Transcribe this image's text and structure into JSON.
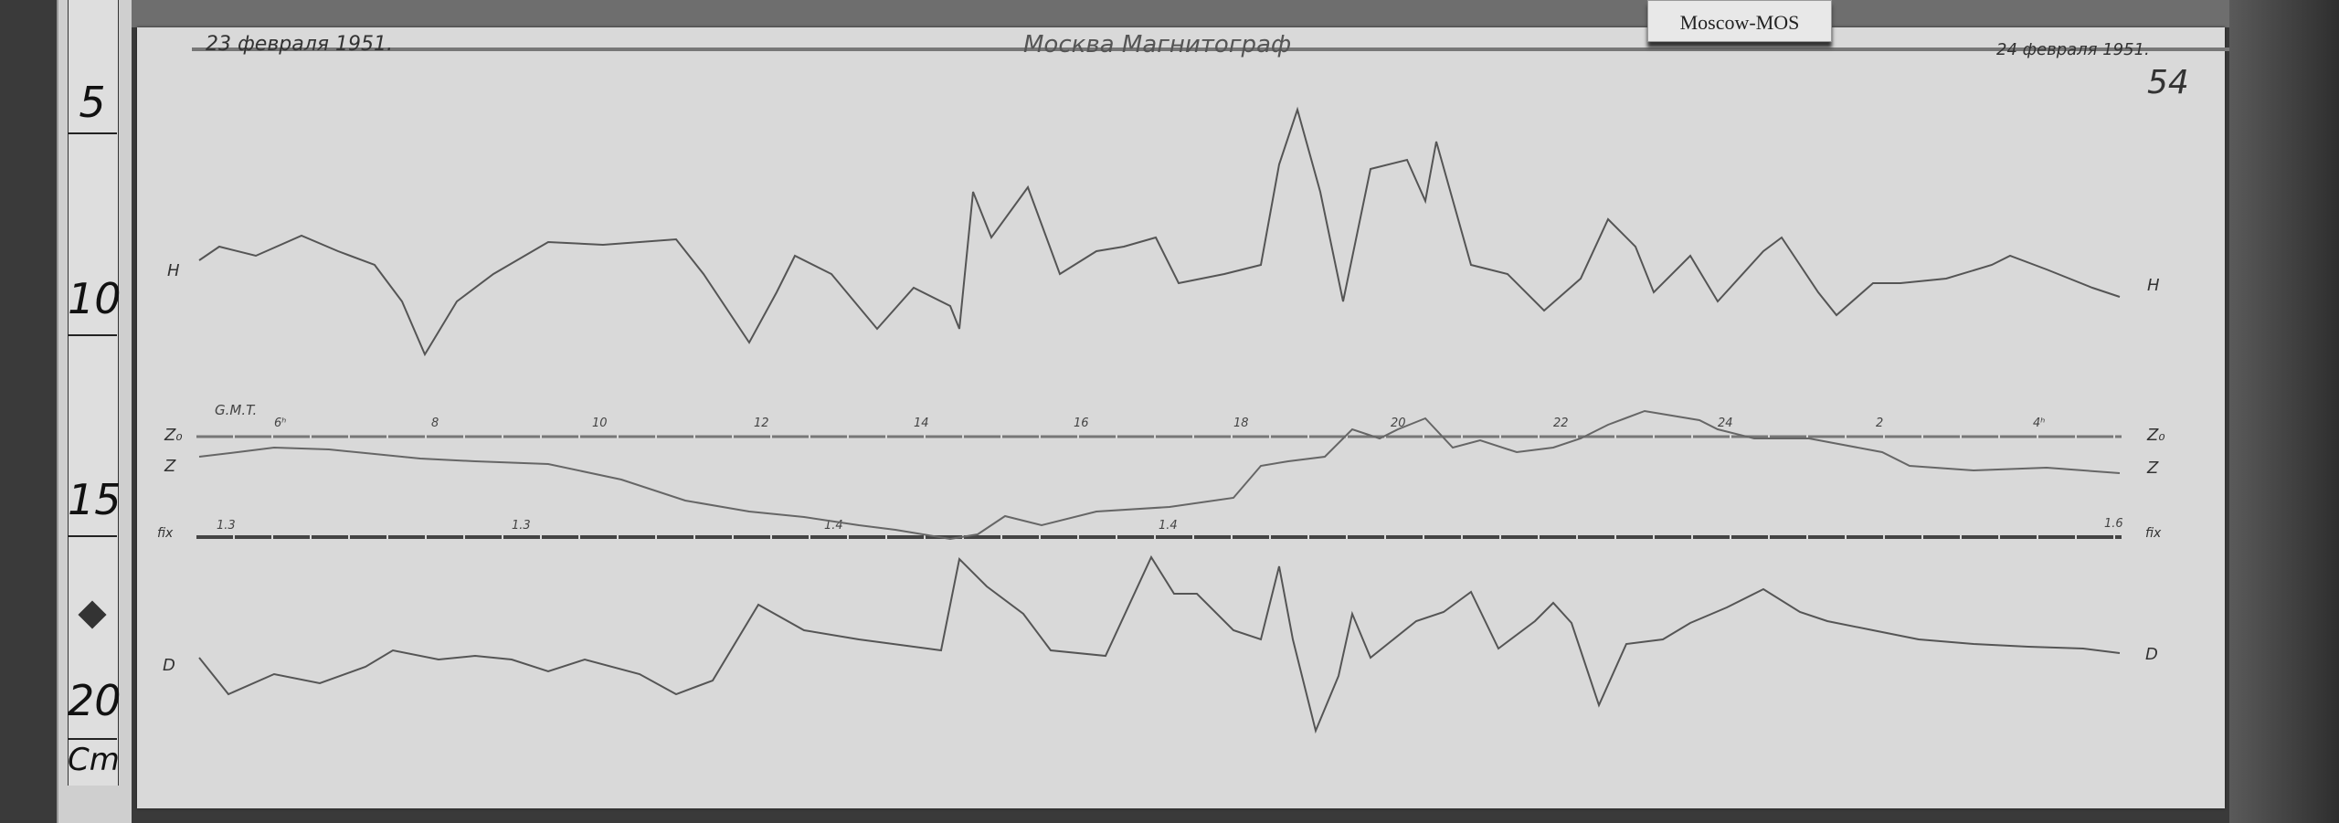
{
  "header": {
    "start_date": "23 февраля 1951.",
    "title": "Москва  Магнитограф",
    "end_date": "24 февраля 1951.",
    "sheet_number": "54",
    "station_tag": "Moscow-MOS"
  },
  "ruler": {
    "marks": [
      "5",
      "10",
      "15",
      "20"
    ],
    "unit": "Cm"
  },
  "traces": {
    "H": {
      "label_left": "H",
      "label_right": "H"
    },
    "Z0": {
      "label_left": "Z₀",
      "label_right": "Z₀"
    },
    "Z": {
      "label_left": "Z",
      "label_right": "Z"
    },
    "fix": {
      "label_left": "fix",
      "label_right": "fix"
    },
    "D": {
      "label_left": "D",
      "label_right": "D"
    }
  },
  "time_axis": {
    "label": "G.M.T.",
    "hours": [
      "6ʰ",
      "8",
      "10",
      "12",
      "14",
      "16",
      "18",
      "20",
      "22",
      "24",
      "2",
      "4ʰ"
    ]
  },
  "fix_marks": [
    "1.3",
    "1.3",
    "1.4",
    "1.4",
    "1.6"
  ],
  "colors": {
    "paper": "#d9d9d9",
    "trace": "#555555",
    "background": "#3a3a3a"
  }
}
